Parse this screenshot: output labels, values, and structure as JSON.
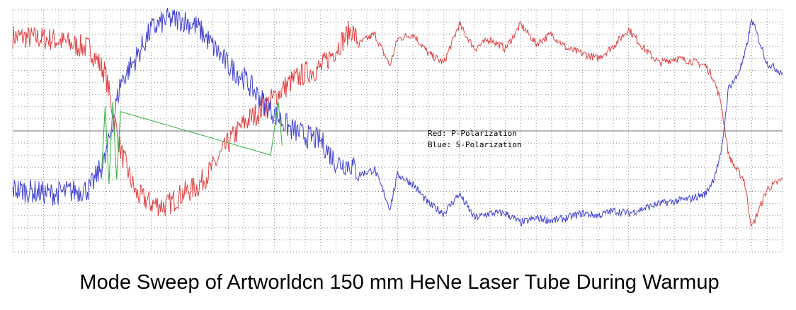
{
  "chart_data": {
    "type": "line",
    "title": "Mode Sweep of Artworldcn 150 mm HeNe Laser Tube During Warmup",
    "xlabel": "",
    "ylabel": "",
    "grid": true,
    "legend": {
      "placement": "center-right",
      "entries": [
        "Red: P-Polarization",
        "Blue: S-Polarization"
      ]
    },
    "x_range": [
      0,
      100
    ],
    "y_range": [
      0,
      100
    ],
    "series": [
      {
        "color": "#e04040",
        "x": [
          0,
          5,
          10,
          12,
          14,
          16,
          18,
          20,
          22,
          24,
          26,
          28,
          30,
          32,
          34,
          36,
          38,
          40,
          42,
          44,
          45,
          47,
          49,
          50,
          52,
          54,
          56,
          58,
          60,
          62,
          64,
          66,
          68,
          70,
          72,
          74,
          76,
          78,
          80,
          82,
          84,
          86,
          88,
          90,
          91,
          92,
          93,
          94,
          95,
          96,
          98,
          100
        ],
        "y": [
          89,
          88,
          84,
          74,
          42,
          24,
          20,
          19,
          24,
          27,
          35,
          45,
          53,
          58,
          64,
          70,
          74,
          76,
          84,
          92,
          86,
          90,
          77,
          88,
          90,
          82,
          78,
          94,
          84,
          88,
          84,
          94,
          86,
          90,
          84,
          82,
          80,
          85,
          92,
          84,
          78,
          80,
          79,
          77,
          72,
          62,
          40,
          34,
          30,
          10,
          26,
          30
        ]
      },
      {
        "color": "#4040d0",
        "x": [
          0,
          5,
          10,
          12,
          14,
          16,
          18,
          20,
          22,
          24,
          26,
          28,
          30,
          32,
          34,
          36,
          38,
          40,
          42,
          44,
          45,
          47,
          49,
          50,
          52,
          54,
          56,
          58,
          60,
          62,
          64,
          66,
          68,
          70,
          72,
          74,
          76,
          78,
          80,
          82,
          84,
          86,
          88,
          90,
          91,
          92,
          93,
          94,
          95,
          96,
          98,
          100
        ],
        "y": [
          26,
          24,
          26,
          38,
          70,
          80,
          92,
          96,
          96,
          93,
          85,
          77,
          72,
          64,
          57,
          51,
          48,
          46,
          37,
          36,
          32,
          34,
          18,
          32,
          28,
          20,
          16,
          24,
          14,
          16,
          16,
          12,
          14,
          13,
          14,
          16,
          15,
          17,
          16,
          18,
          20,
          21,
          22,
          24,
          30,
          40,
          68,
          72,
          80,
          96,
          78,
          74
        ]
      },
      {
        "color": "#30b040",
        "x": [
          11.5,
          12,
          12.5,
          13,
          13.5,
          14,
          33.5,
          34.5,
          35
        ],
        "y": [
          30,
          60,
          28,
          62,
          30,
          58,
          40,
          62,
          44
        ]
      }
    ]
  }
}
